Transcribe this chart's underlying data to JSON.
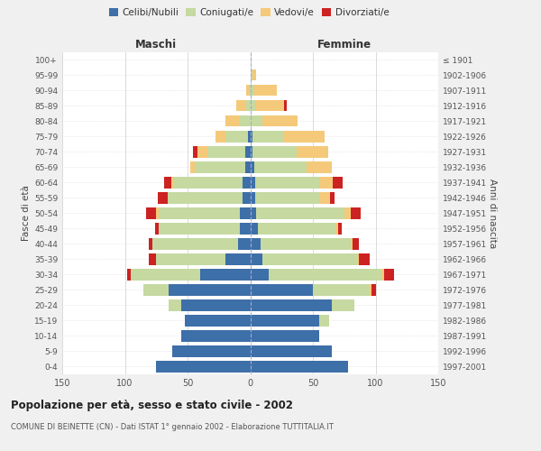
{
  "age_groups": [
    "0-4",
    "5-9",
    "10-14",
    "15-19",
    "20-24",
    "25-29",
    "30-34",
    "35-39",
    "40-44",
    "45-49",
    "50-54",
    "55-59",
    "60-64",
    "65-69",
    "70-74",
    "75-79",
    "80-84",
    "85-89",
    "90-94",
    "95-99",
    "100+"
  ],
  "birth_years": [
    "1997-2001",
    "1992-1996",
    "1987-1991",
    "1982-1986",
    "1977-1981",
    "1972-1976",
    "1967-1971",
    "1962-1966",
    "1957-1961",
    "1952-1956",
    "1947-1951",
    "1942-1946",
    "1937-1941",
    "1932-1936",
    "1927-1931",
    "1922-1926",
    "1917-1921",
    "1912-1916",
    "1907-1911",
    "1902-1906",
    "≤ 1901"
  ],
  "maschi": {
    "celibi": [
      75,
      62,
      55,
      52,
      55,
      65,
      40,
      20,
      10,
      8,
      8,
      6,
      6,
      4,
      4,
      2,
      0,
      0,
      0,
      0,
      0
    ],
    "coniugati": [
      0,
      0,
      0,
      0,
      10,
      20,
      55,
      55,
      68,
      65,
      65,
      60,
      55,
      40,
      30,
      18,
      8,
      3,
      1,
      0,
      0
    ],
    "vedovi": [
      0,
      0,
      0,
      0,
      0,
      0,
      0,
      0,
      0,
      0,
      2,
      0,
      2,
      4,
      8,
      8,
      12,
      8,
      2,
      0,
      0
    ],
    "divorziati": [
      0,
      0,
      0,
      0,
      0,
      0,
      3,
      6,
      3,
      3,
      8,
      8,
      6,
      0,
      4,
      0,
      0,
      0,
      0,
      0,
      0
    ]
  },
  "femmine": {
    "nubili": [
      78,
      65,
      55,
      55,
      65,
      50,
      15,
      10,
      8,
      6,
      5,
      4,
      4,
      3,
      2,
      2,
      0,
      0,
      0,
      0,
      0
    ],
    "coniugate": [
      0,
      0,
      0,
      8,
      18,
      45,
      90,
      75,
      72,
      62,
      70,
      52,
      52,
      42,
      35,
      25,
      10,
      5,
      3,
      2,
      0
    ],
    "vedove": [
      0,
      0,
      0,
      0,
      0,
      2,
      2,
      2,
      2,
      2,
      5,
      8,
      10,
      20,
      25,
      32,
      28,
      22,
      18,
      3,
      0
    ],
    "divorziate": [
      0,
      0,
      0,
      0,
      0,
      3,
      8,
      8,
      5,
      3,
      8,
      3,
      8,
      0,
      0,
      0,
      0,
      2,
      0,
      0,
      0
    ]
  },
  "colors": {
    "celibe": "#3d6fa8",
    "coniugato": "#c5d9a0",
    "vedovo": "#f5c97a",
    "divorziato": "#cc2222"
  },
  "legend_labels": [
    "Celibi/Nubili",
    "Coniugati/e",
    "Vedovi/e",
    "Divorziati/e"
  ],
  "title": "Popolazione per età, sesso e stato civile - 2002",
  "subtitle": "COMUNE DI BEINETTE (CN) - Dati ISTAT 1° gennaio 2002 - Elaborazione TUTTITALIA.IT",
  "xlabel_left": "Maschi",
  "xlabel_right": "Femmine",
  "ylabel_left": "Fasce di età",
  "ylabel_right": "Anni di nascita",
  "xlim": 150,
  "bg_color": "#f0f0f0",
  "plot_bg": "#ffffff",
  "grid_color": "#cccccc"
}
